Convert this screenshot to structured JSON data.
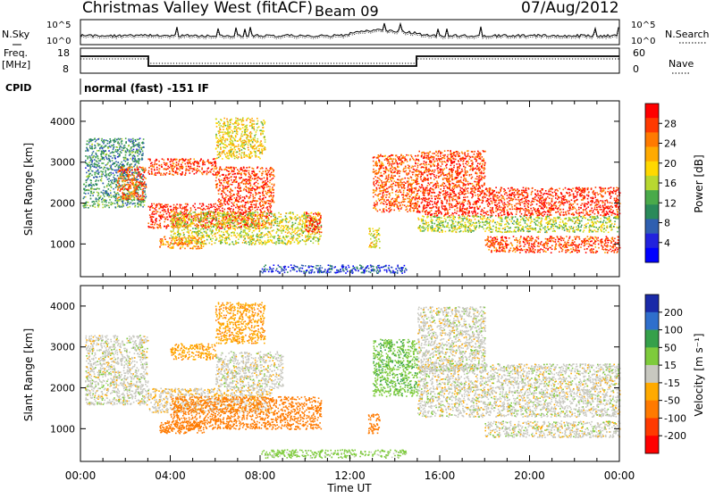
{
  "header": {
    "station": "Christmas Valley West (fitACF)",
    "beam": "Beam 09",
    "date": "07/Aug/2012"
  },
  "top_panels": {
    "nsky_label": "N.Sky",
    "nsearch_label": "N.Search",
    "noise_ticks": [
      "10^5",
      "10^0"
    ],
    "freq_label_1": "Freq.",
    "freq_label_2": "[MHz]",
    "freq_ticks": [
      "18",
      "8"
    ],
    "nave_label": "Nave",
    "nave_ticks": [
      "60",
      "0"
    ],
    "cpid_label": "CPID",
    "cpid_text": "normal (fast) -151 IF"
  },
  "power_colorbar": {
    "title": "Power [dB]",
    "ticks": [
      "28",
      "24",
      "20",
      "16",
      "12",
      "8",
      "4"
    ],
    "colors": [
      "#ff0000",
      "#ff3a00",
      "#ff7a00",
      "#ffaa00",
      "#ffd800",
      "#b8d830",
      "#4aaa4a",
      "#2a8a5a",
      "#2f5fb0",
      "#2222dd",
      "#0000ff"
    ]
  },
  "velocity_colorbar": {
    "title": "Velocity [m s⁻¹]",
    "ticks": [
      "200",
      "100",
      "50",
      "15",
      "-15",
      "-50",
      "-100",
      "-200"
    ],
    "colors": [
      "#1a2aa8",
      "#2f6fcc",
      "#35a04a",
      "#7ecb3c",
      "#c8c8c0",
      "#ffaa00",
      "#ff7a00",
      "#ff3a00",
      "#ff0000"
    ]
  },
  "chart_data": [
    {
      "type": "heatmap",
      "title": "Power",
      "ylabel": "Slant Range [km]",
      "xlabel": "Time UT",
      "x_ticks": [
        "00:00",
        "04:00",
        "08:00",
        "12:00",
        "16:00",
        "20:00",
        "00:00"
      ],
      "y_ticks": [
        "1000",
        "2000",
        "3000",
        "4000"
      ],
      "ylim": [
        200,
        4500
      ],
      "xlim_hours": [
        0,
        24
      ],
      "value_range_db": [
        0,
        30
      ],
      "echo_regions": [
        {
          "t0": 0.1,
          "t1": 2.9,
          "r0": 1900,
          "r1": 2500,
          "level": 0.35
        },
        {
          "t0": 0.2,
          "t1": 2.8,
          "r0": 2500,
          "r1": 3600,
          "level": 0.3
        },
        {
          "t0": 1.6,
          "t1": 2.9,
          "r0": 2100,
          "r1": 2900,
          "level": 0.85
        },
        {
          "t0": 3.0,
          "t1": 6.0,
          "r0": 2700,
          "r1": 3100,
          "level": 0.9
        },
        {
          "t0": 6.0,
          "t1": 8.2,
          "r0": 3100,
          "r1": 4100,
          "level": 0.6
        },
        {
          "t0": 3.0,
          "t1": 8.5,
          "r0": 1400,
          "r1": 2000,
          "level": 0.95
        },
        {
          "t0": 6.0,
          "t1": 8.6,
          "r0": 2000,
          "r1": 2900,
          "level": 0.9
        },
        {
          "t0": 4.0,
          "t1": 10.7,
          "r0": 1000,
          "r1": 1800,
          "level": 0.55
        },
        {
          "t0": 10.0,
          "t1": 10.7,
          "r0": 1300,
          "r1": 1800,
          "level": 0.95
        },
        {
          "t0": 3.5,
          "t1": 5.5,
          "r0": 900,
          "r1": 1200,
          "level": 0.75
        },
        {
          "t0": 13.0,
          "t1": 15.0,
          "r0": 1800,
          "r1": 3200,
          "level": 0.85
        },
        {
          "t0": 12.8,
          "t1": 13.3,
          "r0": 900,
          "r1": 1400,
          "level": 0.6
        },
        {
          "t0": 15.0,
          "t1": 24.0,
          "r0": 1700,
          "r1": 2400,
          "level": 0.95
        },
        {
          "t0": 15.0,
          "t1": 18.0,
          "r0": 2400,
          "r1": 3300,
          "level": 0.9
        },
        {
          "t0": 15.0,
          "t1": 24.0,
          "r0": 1300,
          "r1": 1700,
          "level": 0.5
        },
        {
          "t0": 18.0,
          "t1": 24.0,
          "r0": 800,
          "r1": 1200,
          "level": 0.9
        },
        {
          "t0": 8.0,
          "t1": 14.5,
          "r0": 300,
          "r1": 500,
          "level": 0.15
        }
      ]
    },
    {
      "type": "heatmap",
      "title": "Velocity",
      "ylabel": "Slant Range [km]",
      "xlabel": "Time UT",
      "x_ticks": [
        "00:00",
        "04:00",
        "08:00",
        "12:00",
        "16:00",
        "20:00",
        "00:00"
      ],
      "y_ticks": [
        "1000",
        "2000",
        "3000",
        "4000"
      ],
      "ylim": [
        200,
        4500
      ],
      "xlim_hours": [
        0,
        24
      ],
      "value_range": [
        -250,
        250
      ],
      "echo_regions": [
        {
          "t0": 0.2,
          "t1": 3.0,
          "r0": 1600,
          "r1": 3300,
          "vel": 0
        },
        {
          "t0": 3.0,
          "t1": 8.5,
          "r0": 1400,
          "r1": 2000,
          "vel": -10
        },
        {
          "t0": 6.0,
          "t1": 9.0,
          "r0": 2000,
          "r1": 2900,
          "vel": 0
        },
        {
          "t0": 4.0,
          "t1": 6.0,
          "r0": 2700,
          "r1": 3100,
          "vel": -40
        },
        {
          "t0": 6.0,
          "t1": 8.2,
          "r0": 3100,
          "r1": 4100,
          "vel": -40
        },
        {
          "t0": 4.0,
          "t1": 10.7,
          "r0": 1000,
          "r1": 1800,
          "vel": -80
        },
        {
          "t0": 3.5,
          "t1": 5.5,
          "r0": 900,
          "r1": 1200,
          "vel": -70
        },
        {
          "t0": 12.8,
          "t1": 13.3,
          "r0": 900,
          "r1": 1400,
          "vel": -80
        },
        {
          "t0": 13.0,
          "t1": 15.0,
          "r0": 1800,
          "r1": 3200,
          "vel": 40
        },
        {
          "t0": 15.0,
          "t1": 18.0,
          "r0": 2400,
          "r1": 4000,
          "vel": 0
        },
        {
          "t0": 15.0,
          "t1": 24.0,
          "r0": 1700,
          "r1": 2600,
          "vel": 0
        },
        {
          "t0": 15.0,
          "t1": 24.0,
          "r0": 1300,
          "r1": 1700,
          "vel": 0
        },
        {
          "t0": 18.0,
          "t1": 24.0,
          "r0": 800,
          "r1": 1200,
          "vel": 0
        },
        {
          "t0": 8.0,
          "t1": 14.5,
          "r0": 300,
          "r1": 500,
          "vel": 30
        }
      ]
    }
  ]
}
